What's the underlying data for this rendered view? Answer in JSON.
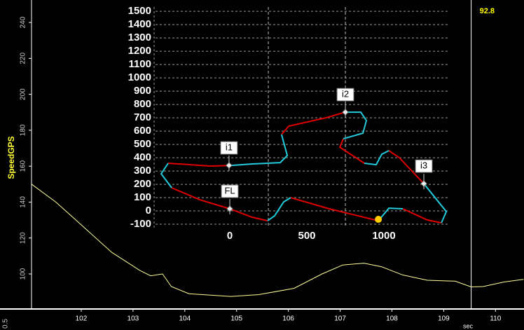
{
  "chart_data": [
    {
      "type": "line",
      "y_label": "SpeedGPS",
      "x_label": "sec",
      "x": [
        101.04,
        101.51,
        102.05,
        102.59,
        103.13,
        103.34,
        103.57,
        103.74,
        104.08,
        104.89,
        105.43,
        106.11,
        106.65,
        107.05,
        107.46,
        107.8,
        108.2,
        108.68,
        109.22,
        109.53,
        109.76,
        110.16,
        110.54
      ],
      "series": [
        {
          "color": "#ffff99",
          "values": [
            150,
            140,
            126,
            112,
            102,
            99,
            100,
            93,
            89,
            87.5,
            88.5,
            92,
            100,
            105,
            106,
            104,
            99.5,
            96.5,
            96,
            92.8,
            93,
            95.5,
            97
          ]
        }
      ],
      "xlim": [
        101.04,
        110.55
      ],
      "ylim": [
        80.5,
        252.5
      ],
      "xticks": [
        102,
        103,
        104,
        105,
        106,
        107,
        108,
        109,
        110
      ],
      "yticks": [
        100,
        120,
        140,
        160,
        180,
        200,
        220,
        240
      ],
      "cursor": {
        "x": 109.53,
        "value": 92.8,
        "color": "#ffff00"
      }
    },
    {
      "type": "line",
      "series": [
        {
          "color": "#e00000",
          "x": [
            0,
            145,
            245,
            null,
            395,
            645,
            964,
            null,
            1123,
            1282,
            1373,
            null,
            1259,
            1100,
            1032,
            null,
            873,
            714,
            736,
            null,
            750,
            623,
            382,
            336,
            null,
            9,
            -127,
            -400,
            null,
            -377,
            -195,
            0
          ],
          "values": [
            16,
            -47,
            -74,
            null,
            100,
            16,
            -74,
            null,
            16,
            -68,
            -89,
            null,
            205,
            400,
            453,
            null,
            358,
            479,
            542,
            null,
            742,
            700,
            637,
            574,
            null,
            342,
            337,
            358,
            null,
            174,
            84,
            16
          ]
        },
        {
          "color": "#22ccdd",
          "x": [
            245,
            291,
            350,
            395,
            null,
            964,
            1032,
            1123,
            null,
            1373,
            1405,
            1259,
            null,
            1032,
            986,
            950,
            873,
            null,
            736,
            864,
            886,
            850,
            750,
            null,
            336,
            373,
            327,
            145,
            9,
            null,
            -400,
            -445,
            -377
          ],
          "values": [
            -74,
            -37,
            68,
            100,
            null,
            -74,
            21,
            16,
            null,
            -89,
            -5,
            205,
            null,
            453,
            426,
            347,
            358,
            null,
            542,
            584,
            679,
            742,
            742,
            null,
            574,
            416,
            363,
            353,
            342,
            null,
            358,
            279,
            174
          ]
        }
      ],
      "markers": [
        {
          "label": "i1",
          "x": -5,
          "y": 342
        },
        {
          "label": "i2",
          "x": 750,
          "y": 742
        },
        {
          "label": "i3",
          "x": 1259,
          "y": 205
        },
        {
          "label": "FL",
          "x": 0,
          "y": 16
        }
      ],
      "position": {
        "x": 964,
        "y": -63,
        "color": "#ffcc00"
      },
      "xlim": [
        -491,
        1418
      ],
      "ylim": [
        -126,
        1532
      ],
      "xticks": [
        0,
        500,
        1000
      ],
      "xgrid": [
        250,
        750
      ],
      "yticks": [
        -100,
        0,
        100,
        200,
        300,
        400,
        500,
        600,
        700,
        800,
        900,
        1000,
        1100,
        1200,
        1300,
        1400,
        1500
      ]
    }
  ],
  "lower_pane": {
    "yticks": [
      0.5
    ]
  }
}
